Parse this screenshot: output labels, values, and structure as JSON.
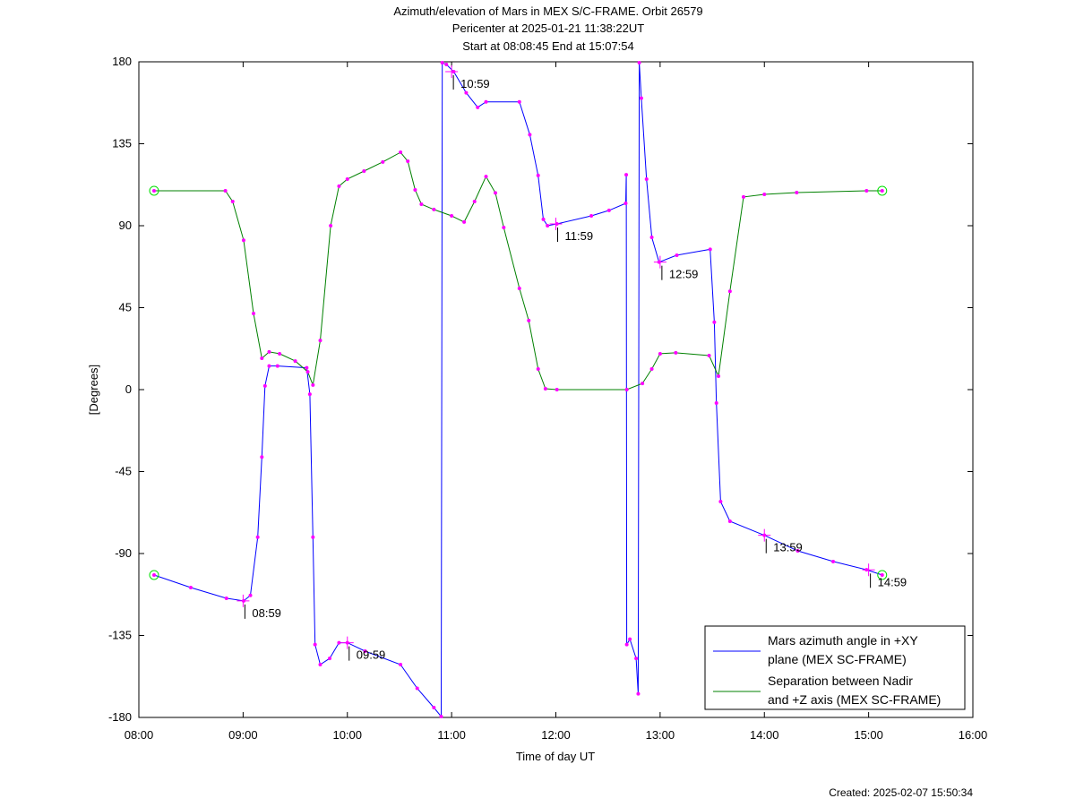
{
  "chart_data": {
    "type": "line",
    "title": "Azimuth/elevation of Mars in MEX S/C-FRAME.  Orbit 26579",
    "subtitle": [
      "Pericenter at 2025-01-21 11:38:22UT",
      "Start at 08:08:45 End at 15:07:54"
    ],
    "x_label": "Time of day UT",
    "y_label": "[Degrees]",
    "footer": "Created: 2025-02-07 15:50:34",
    "xlim": [
      8,
      16
    ],
    "xticks": [
      {
        "value": 8,
        "label": "08:00"
      },
      {
        "value": 9,
        "label": "09:00"
      },
      {
        "value": 10,
        "label": "10:00"
      },
      {
        "value": 11,
        "label": "11:00"
      },
      {
        "value": 12,
        "label": "12:00"
      },
      {
        "value": 13,
        "label": "13:00"
      },
      {
        "value": 14,
        "label": "14:00"
      },
      {
        "value": 15,
        "label": "15:00"
      },
      {
        "value": 16,
        "label": "16:00"
      }
    ],
    "ylim": [
      -180,
      180
    ],
    "yticks": [
      -180,
      -135,
      -90,
      -45,
      0,
      45,
      90,
      135,
      180
    ],
    "grid": false,
    "legend": "lower right",
    "series": [
      {
        "name": "Mars azimuth angle in +XY plane (MEX SC-FRAME)",
        "color": "#0000ff",
        "x": [
          8.146,
          8.498,
          8.84,
          9.005,
          9.07,
          9.14,
          9.18,
          9.21,
          9.25,
          9.33,
          9.61,
          9.64,
          9.67,
          9.69,
          9.74,
          9.83,
          9.92,
          10.0,
          10.17,
          10.51,
          10.67,
          10.83,
          10.9,
          10.91,
          10.95,
          11.02,
          11.14,
          11.25,
          11.33,
          11.65,
          11.75,
          11.83,
          11.88,
          11.92,
          12.01,
          12.34,
          12.51,
          12.67,
          12.675,
          12.68,
          12.71,
          12.77,
          12.79,
          12.8,
          12.82,
          12.87,
          12.92,
          12.99,
          13.16,
          13.48,
          13.52,
          13.54,
          13.58,
          13.67,
          14.0,
          14.32,
          14.66,
          14.98,
          15.13
        ],
        "values": [
          -101.8,
          -108.7,
          -114.6,
          -116,
          -113,
          -81,
          -37,
          2,
          13,
          13,
          12,
          -2.5,
          -81,
          -140,
          -151,
          -147.6,
          -139,
          -139,
          -143.6,
          -151,
          -164,
          -174.6,
          -179.5,
          179.5,
          178.5,
          174.6,
          163,
          155,
          158,
          158,
          140,
          117.6,
          93.5,
          90,
          91,
          95.4,
          98.4,
          102.3,
          118,
          -140,
          -137,
          -147.6,
          -167,
          179.5,
          160,
          115.6,
          83.6,
          70,
          73.8,
          77,
          37,
          -7.4,
          -61.5,
          -72.3,
          -80,
          -88.5,
          -94.4,
          -98.9,
          -101.8
        ]
      },
      {
        "name": "Separation between Nadir and +Z axis (MEX SC-FRAME)",
        "color": "#008000",
        "x": [
          8.146,
          8.83,
          8.9,
          9.005,
          9.1,
          9.18,
          9.25,
          9.35,
          9.5,
          9.62,
          9.67,
          9.74,
          9.84,
          9.92,
          10.0,
          10.16,
          10.34,
          10.51,
          10.58,
          10.65,
          10.71,
          10.83,
          11.0,
          11.12,
          11.22,
          11.33,
          11.42,
          11.5,
          11.65,
          11.74,
          11.83,
          11.9,
          12.01,
          12.68,
          12.83,
          12.92,
          13.0,
          13.15,
          13.47,
          13.56,
          13.67,
          13.8,
          14.0,
          14.31,
          14.98,
          15.13
        ],
        "values": [
          109.2,
          109.2,
          103.3,
          82,
          41.8,
          17.2,
          20.7,
          19.7,
          15.7,
          9.8,
          2.5,
          27,
          90,
          111.7,
          115.6,
          120,
          125,
          130.3,
          125.4,
          109.7,
          101.8,
          98.9,
          95.4,
          92,
          103.3,
          117,
          108,
          89,
          55.6,
          37.9,
          11.3,
          0.5,
          0,
          0,
          3.4,
          11.3,
          19.7,
          20.2,
          18.7,
          7.4,
          54,
          105.8,
          107.2,
          108.2,
          109.2,
          109.2
        ]
      }
    ],
    "annotations": [
      {
        "label": "08:59",
        "x": 9.0,
        "y": -116
      },
      {
        "label": "09:59",
        "x": 10.0,
        "y": -139
      },
      {
        "label": "10:59",
        "x": 11.0,
        "y": 174.6
      },
      {
        "label": "11:59",
        "x": 12.0,
        "y": 91
      },
      {
        "label": "12:59",
        "x": 13.0,
        "y": 70
      },
      {
        "label": "13:59",
        "x": 14.0,
        "y": -80
      },
      {
        "label": "14:59",
        "x": 15.0,
        "y": -99
      }
    ]
  }
}
